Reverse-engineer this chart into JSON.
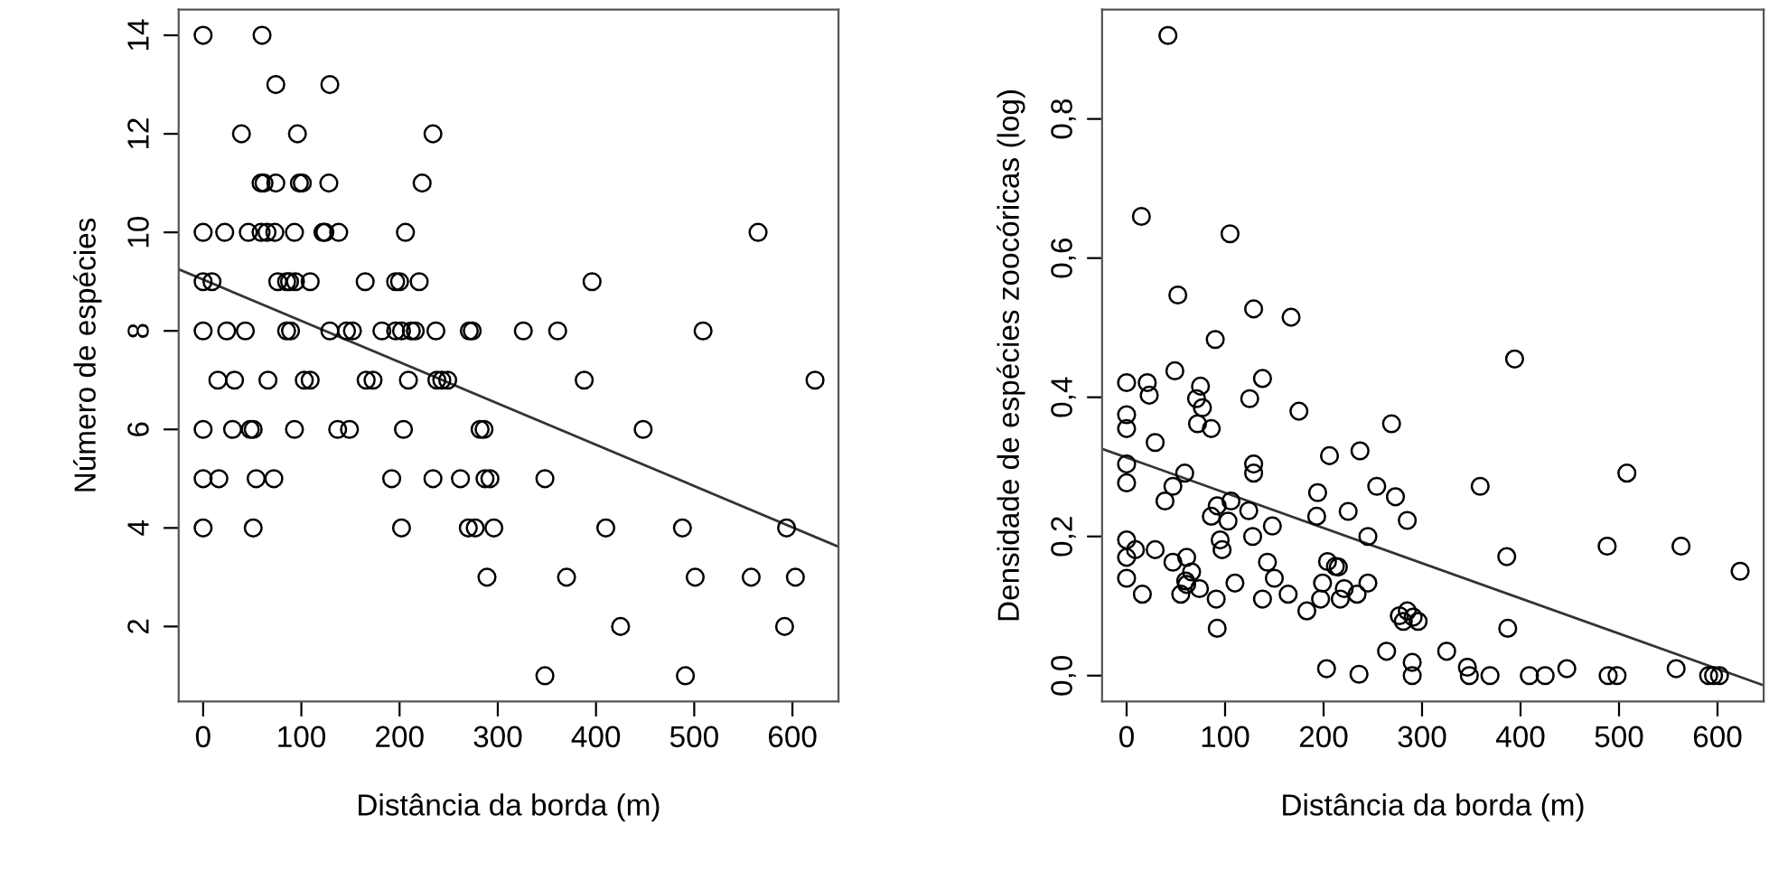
{
  "chart_data": [
    {
      "type": "scatter",
      "xlabel": "Distância da borda (m)",
      "ylabel": "Número de espécies",
      "xlim": [
        -24.9,
        646.9
      ],
      "ylim": [
        0.48,
        14.52
      ],
      "xticks": [
        0,
        100,
        200,
        300,
        400,
        500,
        600
      ],
      "yticks": [
        2,
        4,
        6,
        8,
        10,
        12,
        14
      ],
      "grid": false,
      "series": [
        {
          "marker": "circle",
          "color": "#000000",
          "x": [
            0,
            60,
            74,
            129,
            39,
            96,
            234,
            59,
            62,
            74,
            98,
            101,
            128,
            223,
            0,
            22,
            46,
            59,
            65,
            73,
            93,
            122,
            124,
            138,
            206,
            565,
            0,
            9,
            76,
            85,
            88,
            94,
            109,
            165,
            196,
            200,
            220,
            396,
            0,
            24,
            43,
            85,
            89,
            129,
            146,
            152,
            182,
            196,
            202,
            212,
            216,
            237,
            271,
            274,
            326,
            361,
            509,
            15,
            32,
            66,
            103,
            109,
            166,
            173,
            209,
            238,
            243,
            249,
            388,
            623,
            0,
            30,
            48,
            51,
            93,
            137,
            149,
            204,
            282,
            286,
            448,
            0,
            16,
            54,
            72,
            192,
            234,
            262,
            287,
            292,
            348,
            0,
            51,
            202,
            270,
            277,
            296,
            410,
            488,
            594,
            289,
            370,
            501,
            558,
            603,
            425,
            592,
            348,
            491
          ],
          "values": [
            14,
            14,
            13,
            13,
            12,
            12,
            12,
            11,
            11,
            11,
            11,
            11,
            11,
            11,
            10,
            10,
            10,
            10,
            10,
            10,
            10,
            10,
            10,
            10,
            10,
            10,
            9,
            9,
            9,
            9,
            9,
            9,
            9,
            9,
            9,
            9,
            9,
            9,
            8,
            8,
            8,
            8,
            8,
            8,
            8,
            8,
            8,
            8,
            8,
            8,
            8,
            8,
            8,
            8,
            8,
            8,
            8,
            7,
            7,
            7,
            7,
            7,
            7,
            7,
            7,
            7,
            7,
            7,
            7,
            7,
            6,
            6,
            6,
            6,
            6,
            6,
            6,
            6,
            6,
            6,
            6,
            5,
            5,
            5,
            5,
            5,
            5,
            5,
            5,
            5,
            5,
            4,
            4,
            4,
            4,
            4,
            4,
            4,
            4,
            4,
            3,
            3,
            3,
            3,
            3,
            2,
            2,
            1,
            1
          ]
        },
        {
          "type": "line",
          "color": "#333333",
          "marker": "none",
          "x": [
            -24.9,
            646.9
          ],
          "values": [
            9.25,
            3.62
          ]
        }
      ]
    },
    {
      "type": "scatter",
      "xlabel": "Distância da borda (m)",
      "ylabel": "Densidade de espécies zoocóricas (log)",
      "xlim": [
        -24.9,
        646.9
      ],
      "ylim": [
        -0.037,
        0.957
      ],
      "xticks": [
        0,
        100,
        200,
        300,
        400,
        500,
        600
      ],
      "yticks": [
        {
          "value": 0.0,
          "label": "0,0"
        },
        {
          "value": 0.2,
          "label": "0,2"
        },
        {
          "value": 0.4,
          "label": "0,4"
        },
        {
          "value": 0.6,
          "label": "0,6"
        },
        {
          "value": 0.8,
          "label": "0,8"
        }
      ],
      "grid": false,
      "series": [
        {
          "marker": "circle",
          "color": "#000000",
          "x": [
            42,
            15,
            105,
            52,
            129,
            167,
            90,
            49,
            0,
            21,
            23,
            75,
            138,
            125,
            71,
            77,
            175,
            0,
            0,
            72,
            86,
            29,
            0,
            129,
            129,
            59,
            0,
            47,
            39,
            106,
            92,
            124,
            86,
            103,
            194,
            193,
            206,
            237,
            225,
            0,
            0,
            9,
            29,
            95,
            97,
            128,
            148,
            47,
            61,
            66,
            60,
            61,
            0,
            16,
            55,
            74,
            91,
            110,
            143,
            150,
            138,
            164,
            183,
            92,
            203,
            236,
            204,
            212,
            215,
            199,
            197,
            217,
            221,
            234,
            245,
            245,
            254,
            394,
            269,
            273,
            285,
            359,
            386,
            488,
            508,
            563,
            623,
            387,
            277,
            285,
            291,
            296,
            281,
            264,
            290,
            290,
            325,
            346,
            348,
            369,
            409,
            425,
            447,
            489,
            498,
            558,
            591,
            596,
            602
          ],
          "values": [
            0.92,
            0.66,
            0.635,
            0.547,
            0.527,
            0.515,
            0.483,
            0.438,
            0.421,
            0.421,
            0.403,
            0.416,
            0.427,
            0.398,
            0.398,
            0.385,
            0.38,
            0.375,
            0.355,
            0.362,
            0.355,
            0.335,
            0.304,
            0.304,
            0.291,
            0.291,
            0.277,
            0.272,
            0.251,
            0.251,
            0.244,
            0.237,
            0.229,
            0.222,
            0.263,
            0.229,
            0.316,
            0.323,
            0.236,
            0.195,
            0.17,
            0.181,
            0.181,
            0.195,
            0.181,
            0.2,
            0.215,
            0.163,
            0.17,
            0.149,
            0.136,
            0.131,
            0.14,
            0.117,
            0.117,
            0.125,
            0.11,
            0.133,
            0.163,
            0.14,
            0.11,
            0.117,
            0.093,
            0.068,
            0.01,
            0.002,
            0.164,
            0.157,
            0.156,
            0.133,
            0.11,
            0.11,
            0.125,
            0.117,
            0.2,
            0.133,
            0.272,
            0.455,
            0.362,
            0.257,
            0.223,
            0.272,
            0.171,
            0.186,
            0.291,
            0.186,
            0.15,
            0.068,
            0.086,
            0.093,
            0.084,
            0.078,
            0.078,
            0.035,
            0.019,
            0.0,
            0.035,
            0.012,
            0.0,
            0.0,
            0.0,
            0.0,
            0.01,
            0.0,
            0.0,
            0.01,
            0.0,
            0.0,
            0.0
          ]
        },
        {
          "type": "line",
          "color": "#333333",
          "marker": "none",
          "x": [
            -24.9,
            646.9
          ],
          "values": [
            0.326,
            -0.014
          ]
        }
      ]
    }
  ]
}
